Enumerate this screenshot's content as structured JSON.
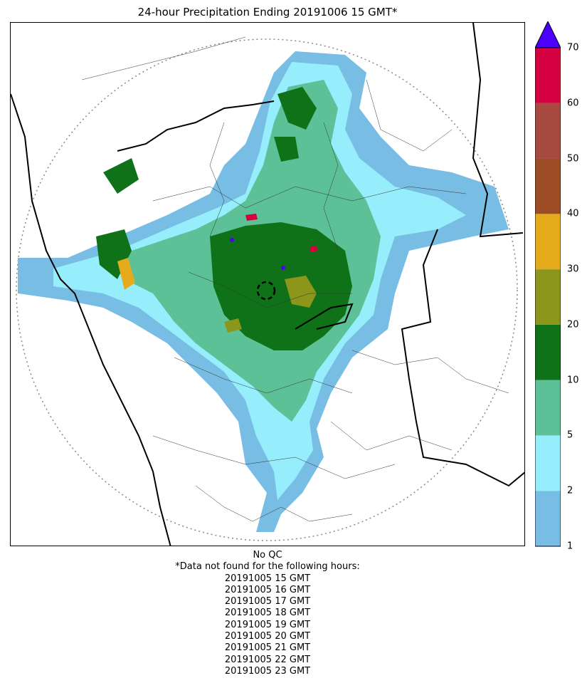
{
  "title": "24-hour Precipitation Ending 20191006 15 GMT*",
  "colorbar": {
    "ticks": [
      "1",
      "2",
      "5",
      "10",
      "20",
      "30",
      "40",
      "50",
      "60",
      "70"
    ],
    "colors": [
      "#78bde3",
      "#96edfb",
      "#5cc196",
      "#0f7219",
      "#8c961b",
      "#e6ab1a",
      "#9c4d25",
      "#a74a3f",
      "#d4003f"
    ],
    "extend_color": "#4b00ff"
  },
  "map": {
    "radar_site_marker": "dashed-circle",
    "range_ring": "dotted-circle"
  },
  "footer": {
    "qc": "No QC",
    "note": "*Data not found for the following hours:",
    "missing_hours": [
      "20191005 15 GMT",
      "20191005 16 GMT",
      "20191005 17 GMT",
      "20191005 18 GMT",
      "20191005 19 GMT",
      "20191005 20 GMT",
      "20191005 21 GMT",
      "20191005 22 GMT",
      "20191005 23 GMT"
    ]
  }
}
